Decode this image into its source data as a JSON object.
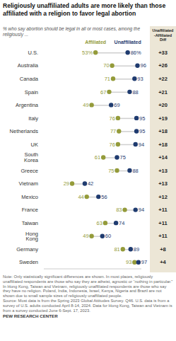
{
  "chart_data": {
    "type": "dot",
    "orientation": "horizontal",
    "title": "Religiously unaffiliated adults are more likely than those affiliated with a religion to favor legal abortion",
    "subtitle": "% who say abortion should be legal in all or most cases, among the religiously ...",
    "categories": [
      "U.S.",
      "Australia",
      "Canada",
      "Spain",
      "Argentina",
      "Italy",
      "Netherlands",
      "UK",
      "South Korea",
      "Greece",
      "Vietnam",
      "Mexico",
      "France",
      "Taiwan",
      "Hong Kong",
      "Germany",
      "Sweden"
    ],
    "series": [
      {
        "name": "Affiliated",
        "color": "#949b3a",
        "values": [
          53,
          70,
          71,
          67,
          49,
          76,
          77,
          76,
          61,
          75,
          29,
          44,
          83,
          63,
          49,
          81,
          93
        ],
        "value_labels": [
          "53%",
          "70",
          "71",
          "67",
          "49",
          "76",
          "77",
          "76",
          "61",
          "75",
          "29",
          "44",
          "83",
          "63",
          "49",
          "81",
          "93"
        ]
      },
      {
        "name": "Unaffiliated",
        "color": "#1f3b6f",
        "values": [
          86,
          96,
          93,
          88,
          69,
          95,
          95,
          94,
          75,
          88,
          42,
          56,
          94,
          74,
          60,
          89,
          97
        ],
        "value_labels": [
          "86%",
          "96",
          "93",
          "88",
          "69",
          "95",
          "95",
          "94",
          "75",
          "88",
          "42",
          "56",
          "94",
          "74",
          "60",
          "89",
          "97"
        ]
      }
    ],
    "xlim": [
      0,
      100
    ],
    "tick_labels": "y",
    "data_labels": true,
    "diff_title": "Unaffiliated\n-Affiliated\nDiff",
    "diff_values": [
      33,
      26,
      22,
      21,
      20,
      19,
      18,
      18,
      14,
      13,
      13,
      12,
      11,
      11,
      11,
      8,
      4
    ],
    "diff_labels": [
      "+33",
      "+26",
      "+22",
      "+21",
      "+20",
      "+19",
      "+18",
      "+18",
      "+14",
      "+13",
      "+13",
      "+12",
      "+11",
      "+11",
      "+11",
      "+8",
      "+4"
    ],
    "note": "Note: Only statistically significant differences are shown. In most places, religiously unaffiliated respondents are those who say they are atheist, agnostic or “nothing in particular.” In Hong Kong, Taiwan and Vietnam, religiously unaffiliated respondents are those who say they have no religion. Poland, India, Indonesia, Israel, Kenya, Nigeria and Brazil are not shown due to small sample sizes of religiously unaffiliated people.",
    "source": "Source: Most data is from the Spring 2023 Global Attitudes Survey. Q46. U.S. data is from a survey of U.S. adults conducted April 8-14, 2024. Data for Hong Kong, Taiwan and Vietnam is from a survey conducted June 6-Sept. 17, 2023.",
    "credit": "PEW RESEARCH CENTER"
  }
}
